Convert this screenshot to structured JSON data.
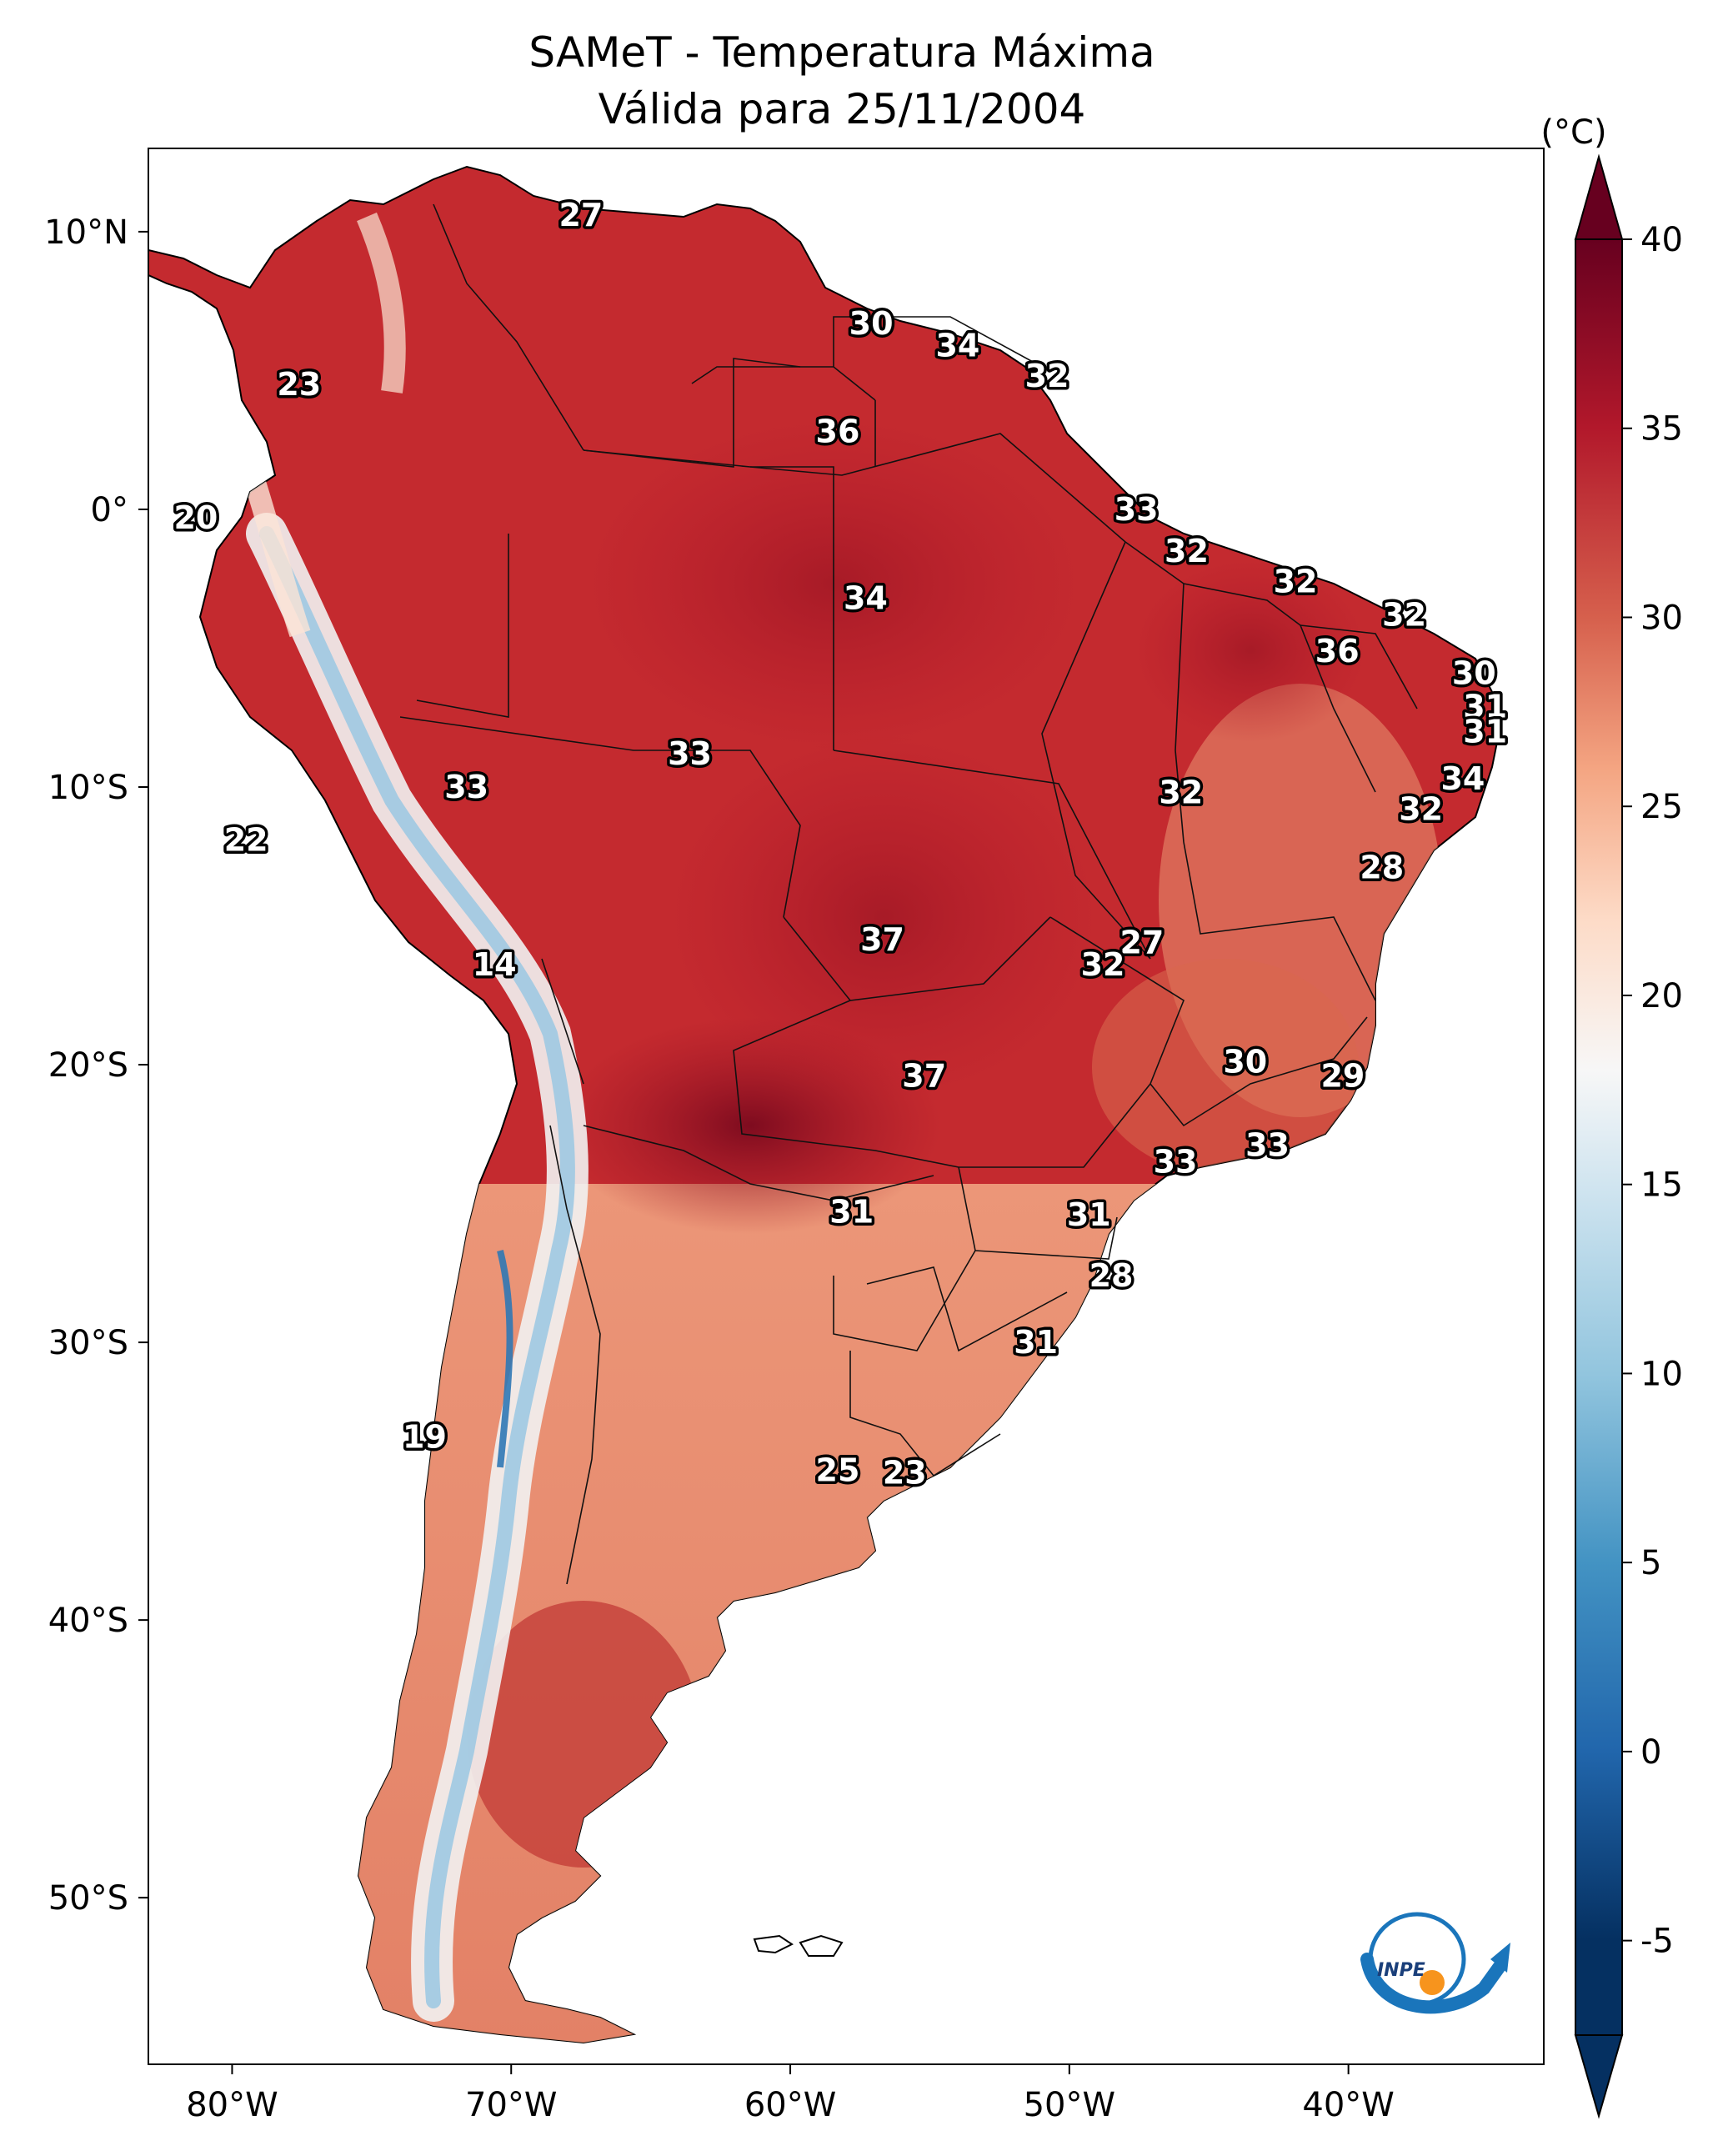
{
  "title": {
    "line1": "SAMeT - Temperatura Máxima",
    "line2": "Válida para 25/11/2004"
  },
  "map": {
    "lon_range": [
      -83,
      -33
    ],
    "lat_range": [
      -56,
      13
    ],
    "lon_ticks": [
      {
        "lon": -80,
        "label": "80°W"
      },
      {
        "lon": -70,
        "label": "70°W"
      },
      {
        "lon": -60,
        "label": "60°W"
      },
      {
        "lon": -50,
        "label": "50°W"
      },
      {
        "lon": -40,
        "label": "40°W"
      }
    ],
    "lat_ticks": [
      {
        "lat": 10,
        "label": "10°N"
      },
      {
        "lat": 0,
        "label": "0°"
      },
      {
        "lat": -10,
        "label": "10°S"
      },
      {
        "lat": -20,
        "label": "20°S"
      },
      {
        "lat": -30,
        "label": "30°S"
      },
      {
        "lat": -40,
        "label": "40°S"
      },
      {
        "lat": -50,
        "label": "50°S"
      }
    ],
    "station_labels": [
      {
        "lon": -67.5,
        "lat": 10.6,
        "value": "27"
      },
      {
        "lon": -77.6,
        "lat": 4.5,
        "value": "23"
      },
      {
        "lon": -57.1,
        "lat": 6.7,
        "value": "30"
      },
      {
        "lon": -54.0,
        "lat": 5.9,
        "value": "34"
      },
      {
        "lon": -50.8,
        "lat": 4.8,
        "value": "32"
      },
      {
        "lon": -58.3,
        "lat": 2.8,
        "value": "36"
      },
      {
        "lon": -81.3,
        "lat": -0.3,
        "value": "20"
      },
      {
        "lon": -47.6,
        "lat": 0.0,
        "value": "33"
      },
      {
        "lon": -45.8,
        "lat": -1.5,
        "value": "32"
      },
      {
        "lon": -41.9,
        "lat": -2.6,
        "value": "32"
      },
      {
        "lon": -57.3,
        "lat": -3.2,
        "value": "34"
      },
      {
        "lon": -38.0,
        "lat": -3.8,
        "value": "32"
      },
      {
        "lon": -40.4,
        "lat": -5.1,
        "value": "36"
      },
      {
        "lon": -35.5,
        "lat": -5.9,
        "value": "30"
      },
      {
        "lon": -35.1,
        "lat": -7.1,
        "value": "31"
      },
      {
        "lon": -35.1,
        "lat": -8.0,
        "value": "31"
      },
      {
        "lon": -63.6,
        "lat": -8.8,
        "value": "33"
      },
      {
        "lon": -71.6,
        "lat": -10.0,
        "value": "33"
      },
      {
        "lon": -35.9,
        "lat": -9.7,
        "value": "34"
      },
      {
        "lon": -46.0,
        "lat": -10.2,
        "value": "32"
      },
      {
        "lon": -37.4,
        "lat": -10.8,
        "value": "32"
      },
      {
        "lon": -79.5,
        "lat": -11.9,
        "value": "22"
      },
      {
        "lon": -38.8,
        "lat": -12.9,
        "value": "28"
      },
      {
        "lon": -56.7,
        "lat": -15.5,
        "value": "37"
      },
      {
        "lon": -47.4,
        "lat": -15.6,
        "value": "27"
      },
      {
        "lon": -48.8,
        "lat": -16.4,
        "value": "32"
      },
      {
        "lon": -70.6,
        "lat": -16.4,
        "value": "14"
      },
      {
        "lon": -43.7,
        "lat": -19.9,
        "value": "30"
      },
      {
        "lon": -40.2,
        "lat": -20.4,
        "value": "29"
      },
      {
        "lon": -55.2,
        "lat": -20.4,
        "value": "37"
      },
      {
        "lon": -42.9,
        "lat": -22.9,
        "value": "33"
      },
      {
        "lon": -46.2,
        "lat": -23.5,
        "value": "33"
      },
      {
        "lon": -57.8,
        "lat": -25.3,
        "value": "31"
      },
      {
        "lon": -49.3,
        "lat": -25.4,
        "value": "31"
      },
      {
        "lon": -48.5,
        "lat": -27.6,
        "value": "28"
      },
      {
        "lon": -51.2,
        "lat": -30.0,
        "value": "31"
      },
      {
        "lon": -73.1,
        "lat": -33.4,
        "value": "19"
      },
      {
        "lon": -58.3,
        "lat": -34.6,
        "value": "25"
      },
      {
        "lon": -55.9,
        "lat": -34.7,
        "value": "23"
      }
    ]
  },
  "colorbar": {
    "unit": "(°C)",
    "min": -7.5,
    "max": 40,
    "stops": [
      {
        "value": -5,
        "color": "#053061"
      },
      {
        "value": 0,
        "color": "#2166ac"
      },
      {
        "value": 5,
        "color": "#4393c3"
      },
      {
        "value": 10,
        "color": "#92c5de"
      },
      {
        "value": 15,
        "color": "#d1e5f0"
      },
      {
        "value": 18,
        "color": "#f7f7f7"
      },
      {
        "value": 22,
        "color": "#fddbc7"
      },
      {
        "value": 26,
        "color": "#f4a582"
      },
      {
        "value": 30,
        "color": "#d6604d"
      },
      {
        "value": 35,
        "color": "#b2182b"
      },
      {
        "value": 40,
        "color": "#67001f"
      }
    ],
    "ticks": [
      {
        "value": 40,
        "label": "40"
      },
      {
        "value": 35,
        "label": "35"
      },
      {
        "value": 30,
        "label": "30"
      },
      {
        "value": 25,
        "label": "25"
      },
      {
        "value": 20,
        "label": "20"
      },
      {
        "value": 15,
        "label": "15"
      },
      {
        "value": 10,
        "label": "10"
      },
      {
        "value": 5,
        "label": "5"
      },
      {
        "value": 0,
        "label": "0"
      },
      {
        "value": -5,
        "label": "-5"
      }
    ]
  },
  "logo": {
    "text": "INPE"
  },
  "colors": {
    "land_hot": "#c0292f",
    "land_warm": "#e58268",
    "andes_cold": "#9ec9e2",
    "ocean": "#ffffff",
    "logo_blue": "#1a75bb",
    "logo_orange": "#f7941d"
  }
}
